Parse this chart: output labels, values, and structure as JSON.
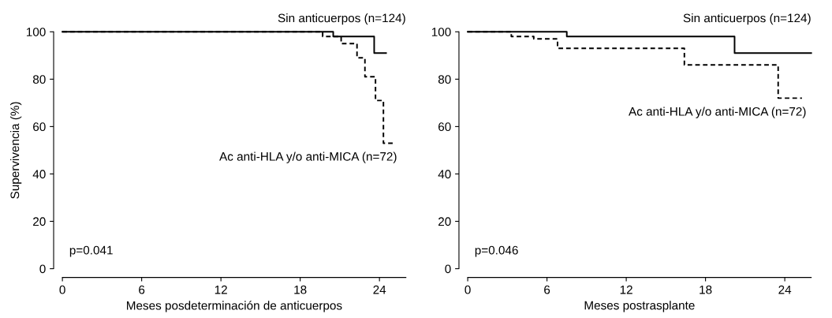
{
  "chart_data": [
    {
      "type": "step",
      "xlabel": "Meses posdeterminación de anticuerpos",
      "ylabel": "Supervivencia (%)",
      "xlim": [
        0,
        26
      ],
      "ylim": [
        0,
        100
      ],
      "xticks": [
        0,
        6,
        12,
        18,
        24
      ],
      "yticks": [
        0,
        20,
        40,
        60,
        80,
        100
      ],
      "grid": false,
      "legend": false,
      "marker": "none",
      "annotations": [
        "p=0.041"
      ],
      "series": [
        {
          "name": "Sin anticuerpos (n=124)",
          "color": "#000000",
          "line_style": "solid",
          "x": [
            0,
            20.5,
            23.6,
            24.5
          ],
          "values": [
            100,
            98,
            91,
            91
          ]
        },
        {
          "name": "Ac anti-HLA y/o anti-MICA (n=72)",
          "color": "#000000",
          "line_style": "dashed",
          "x": [
            0,
            19.7,
            21.1,
            22.3,
            22.9,
            23.7,
            24.3,
            25
          ],
          "values": [
            100,
            98,
            95,
            89,
            81,
            71,
            53,
            53
          ]
        }
      ]
    },
    {
      "type": "step",
      "xlabel": "Meses postrasplante",
      "xlim": [
        0,
        26
      ],
      "ylim": [
        0,
        100
      ],
      "xticks": [
        0,
        6,
        12,
        18,
        24
      ],
      "yticks": [
        0,
        20,
        40,
        60,
        80,
        100
      ],
      "grid": false,
      "legend": false,
      "marker": "none",
      "annotations": [
        "p=0.046"
      ],
      "series": [
        {
          "name": "Sin anticuerpos (n=124)",
          "color": "#000000",
          "line_style": "solid",
          "x": [
            0,
            7.5,
            20.2,
            26
          ],
          "values": [
            100,
            98,
            91,
            91
          ]
        },
        {
          "name": "Ac anti-HLA y/o anti-MICA (n=72)",
          "color": "#000000",
          "line_style": "dashed",
          "x": [
            0,
            3.3,
            5.0,
            6.8,
            16.4,
            23.5,
            25.3
          ],
          "values": [
            100,
            98,
            97,
            93,
            86,
            72,
            72
          ]
        }
      ]
    }
  ]
}
